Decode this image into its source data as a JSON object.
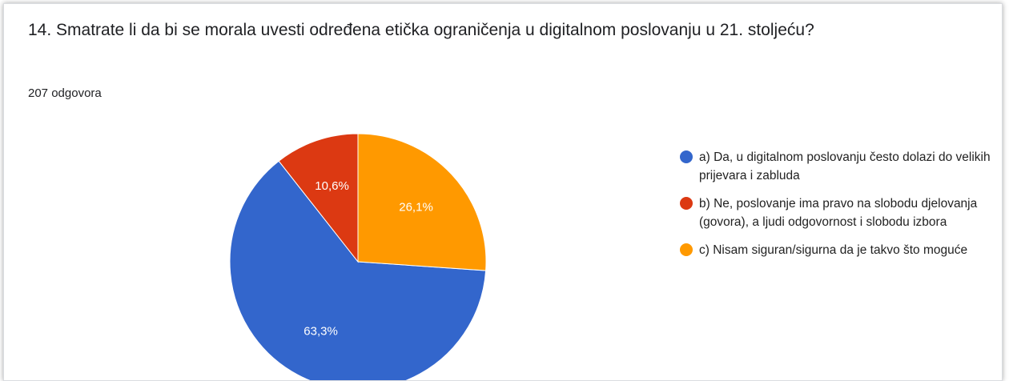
{
  "chart_data": {
    "type": "pie",
    "title": "14. Smatrate li da bi se morala uvesti određena etička ograničenja u digitalnom poslovanju u 21. stoljeću?",
    "subtitle": "207 odgovora",
    "categories": [
      "a) Da, u digitalnom poslovanju često dolazi do velikih prijevara i zabluda",
      "b) Ne, poslovanje ima pravo na slobodu djelovanja (govora), a ljudi odgovornost i slobodu izbora",
      "c) Nisam siguran/sigurna da je takvo što moguće"
    ],
    "values": [
      63.3,
      10.6,
      26.1
    ],
    "value_labels": [
      "63,3%",
      "10,6%",
      "26,1%"
    ],
    "colors": [
      "#3366cc",
      "#dc3912",
      "#ff9900"
    ],
    "legend": "right"
  }
}
